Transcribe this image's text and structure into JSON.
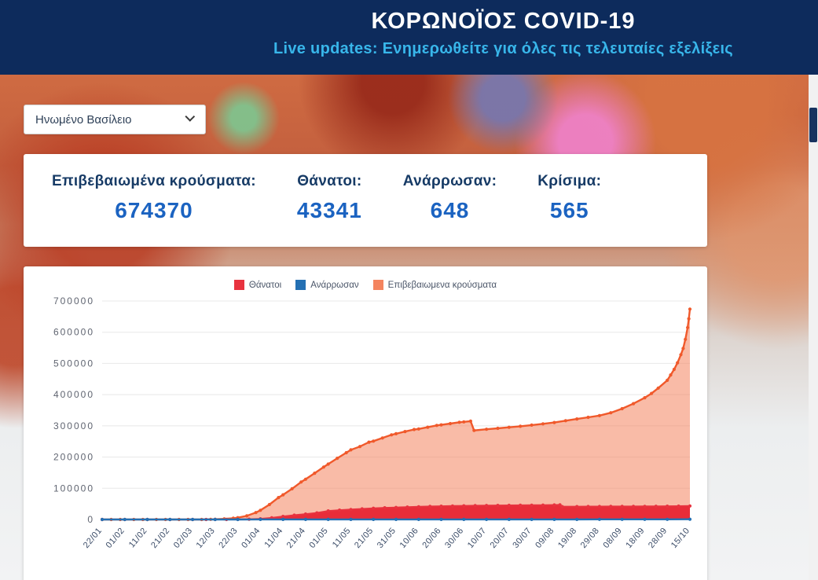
{
  "header": {
    "title": "ΚΟΡΩΝΟΪΟΣ COVID-19",
    "subtitle": "Live updates: Ενημερωθείτε για όλες τις τελευταίες εξελίξεις"
  },
  "country_select": {
    "value": "Ηνωμένο Βασίλειο"
  },
  "stats": [
    {
      "label": "Επιβεβαιωμένα κρούσματα:",
      "value": "674370"
    },
    {
      "label": "Θάνατοι:",
      "value": "43341"
    },
    {
      "label": "Ανάρρωσαν:",
      "value": "648"
    },
    {
      "label": "Κρίσιμα:",
      "value": "565"
    }
  ],
  "theme": {
    "header_bg": "#0d2b5c",
    "subtitle_color": "#38b6ea",
    "label_color": "#173b66",
    "value_color": "#1b63c1"
  },
  "chart_data": {
    "type": "area",
    "title": "",
    "xlabel": "",
    "ylabel": "",
    "ylim": [
      0,
      700000
    ],
    "grid": true,
    "legend_position": "top",
    "y_ticks": [
      0,
      100000,
      200000,
      300000,
      400000,
      500000,
      600000,
      700000
    ],
    "x_tick_labels": [
      "22/01",
      "01/02",
      "11/02",
      "21/02",
      "02/03",
      "12/03",
      "22/03",
      "01/04",
      "11/04",
      "21/04",
      "01/05",
      "11/05",
      "21/05",
      "31/05",
      "10/06",
      "20/06",
      "30/06",
      "10/07",
      "20/07",
      "30/07",
      "09/08",
      "19/08",
      "29/08",
      "08/09",
      "18/09",
      "28/09",
      "15/10"
    ],
    "series": [
      {
        "name": "Θάνατοι",
        "color": "#e8333f",
        "legend_color": "#e8333f",
        "fill": true,
        "fill_color": "rgba(229,30,45,0.9)",
        "width": 2,
        "z": 2,
        "points": [
          [
            0,
            0
          ],
          [
            1,
            0
          ],
          [
            2,
            0
          ],
          [
            3,
            0
          ],
          [
            4,
            0
          ],
          [
            4.6,
            1
          ],
          [
            5,
            10
          ],
          [
            5.5,
            55
          ],
          [
            6,
            280
          ],
          [
            6.5,
            1020
          ],
          [
            7,
            2350
          ],
          [
            7.5,
            5370
          ],
          [
            8,
            9900
          ],
          [
            8.5,
            13750
          ],
          [
            9,
            17340
          ],
          [
            9.5,
            21100
          ],
          [
            10,
            27500
          ],
          [
            10.5,
            30080
          ],
          [
            11,
            32060
          ],
          [
            11.5,
            34080
          ],
          [
            12,
            36040
          ],
          [
            12.5,
            37460
          ],
          [
            13,
            38500
          ],
          [
            13.5,
            39730
          ],
          [
            14,
            40880
          ],
          [
            14.5,
            41750
          ],
          [
            15,
            42590
          ],
          [
            15.5,
            43230
          ],
          [
            16,
            43730
          ],
          [
            16.5,
            44300
          ],
          [
            17,
            44800
          ],
          [
            17.5,
            45100
          ],
          [
            18,
            45300
          ],
          [
            18.5,
            45550
          ],
          [
            19,
            45760
          ],
          [
            19.5,
            46200
          ],
          [
            20,
            46600
          ],
          [
            20.25,
            46710
          ],
          [
            20.35,
            41330
          ],
          [
            21,
            41400
          ],
          [
            21.5,
            41500
          ],
          [
            22,
            41590
          ],
          [
            22.5,
            41690
          ],
          [
            23,
            41800
          ],
          [
            23.5,
            41900
          ],
          [
            24,
            42070
          ],
          [
            24.5,
            42230
          ],
          [
            25,
            42450
          ],
          [
            25.5,
            42760
          ],
          [
            26,
            43341
          ]
        ]
      },
      {
        "name": "Ανάρρωσαν",
        "color": "#2470b3",
        "legend_color": "#2470b3",
        "fill": false,
        "width": 2.4,
        "z": 3,
        "points": [
          [
            0,
            0
          ],
          [
            1,
            1
          ],
          [
            2,
            8
          ],
          [
            3,
            8
          ],
          [
            4,
            19
          ],
          [
            5,
            19
          ],
          [
            6,
            67
          ],
          [
            7,
            135
          ],
          [
            8,
            344
          ],
          [
            9,
            344
          ],
          [
            10,
            344
          ],
          [
            11,
            344
          ],
          [
            12,
            344
          ],
          [
            13,
            344
          ],
          [
            14,
            344
          ],
          [
            15,
            344
          ],
          [
            16,
            344
          ],
          [
            17,
            344
          ],
          [
            18,
            344
          ],
          [
            19,
            344
          ],
          [
            20,
            344
          ],
          [
            21,
            344
          ],
          [
            22,
            500
          ],
          [
            23,
            540
          ],
          [
            24,
            575
          ],
          [
            25,
            610
          ],
          [
            26,
            648
          ]
        ]
      },
      {
        "name": "Επιβεβαιωμενα κρούσματα",
        "color": "#f0592b",
        "legend_color": "#f4845f",
        "fill": true,
        "fill_color": "rgba(244,131,95,0.55)",
        "width": 2.4,
        "z": 1,
        "points": [
          [
            0,
            0
          ],
          [
            0.4,
            0
          ],
          [
            0.8,
            1
          ],
          [
            1,
            2
          ],
          [
            1.4,
            3
          ],
          [
            1.8,
            8
          ],
          [
            2,
            8
          ],
          [
            2.4,
            9
          ],
          [
            2.8,
            9
          ],
          [
            3,
            9
          ],
          [
            3.4,
            13
          ],
          [
            3.8,
            23
          ],
          [
            4,
            40
          ],
          [
            4.4,
            115
          ],
          [
            4.8,
            460
          ],
          [
            5,
            800
          ],
          [
            5.4,
            1950
          ],
          [
            5.8,
            4000
          ],
          [
            6,
            5700
          ],
          [
            6.4,
            11700
          ],
          [
            6.8,
            22100
          ],
          [
            7,
            29500
          ],
          [
            7.4,
            47800
          ],
          [
            7.8,
            70300
          ],
          [
            8,
            79000
          ],
          [
            8.4,
            98500
          ],
          [
            8.8,
            120100
          ],
          [
            9,
            129000
          ],
          [
            9.4,
            148400
          ],
          [
            9.8,
            168000
          ],
          [
            10,
            177500
          ],
          [
            10.4,
            196200
          ],
          [
            10.8,
            214000
          ],
          [
            11,
            223000
          ],
          [
            11.4,
            233700
          ],
          [
            11.8,
            247700
          ],
          [
            12,
            251000
          ],
          [
            12.4,
            261000
          ],
          [
            12.8,
            271200
          ],
          [
            13,
            274800
          ],
          [
            13.4,
            281700
          ],
          [
            13.8,
            288200
          ],
          [
            14,
            290100
          ],
          [
            14.4,
            295600
          ],
          [
            14.8,
            301500
          ],
          [
            15,
            303100
          ],
          [
            15.4,
            307300
          ],
          [
            15.8,
            311400
          ],
          [
            16,
            312700
          ],
          [
            16.3,
            315100
          ],
          [
            16.45,
            285200
          ],
          [
            17,
            288950
          ],
          [
            17.5,
            292200
          ],
          [
            18,
            295400
          ],
          [
            18.5,
            298700
          ],
          [
            19,
            302300
          ],
          [
            19.5,
            306400
          ],
          [
            20,
            310800
          ],
          [
            20.5,
            316400
          ],
          [
            21,
            322000
          ],
          [
            21.5,
            327300
          ],
          [
            22,
            332800
          ],
          [
            22.5,
            342000
          ],
          [
            23,
            355000
          ],
          [
            23.5,
            371200
          ],
          [
            24,
            390000
          ],
          [
            24.3,
            404000
          ],
          [
            24.6,
            421000
          ],
          [
            25,
            446000
          ],
          [
            25.15,
            463000
          ],
          [
            25.3,
            481000
          ],
          [
            25.45,
            502000
          ],
          [
            25.6,
            528000
          ],
          [
            25.7,
            548000
          ],
          [
            25.8,
            577000
          ],
          [
            25.9,
            615000
          ],
          [
            25.95,
            643000
          ],
          [
            26,
            674000
          ]
        ]
      }
    ]
  }
}
